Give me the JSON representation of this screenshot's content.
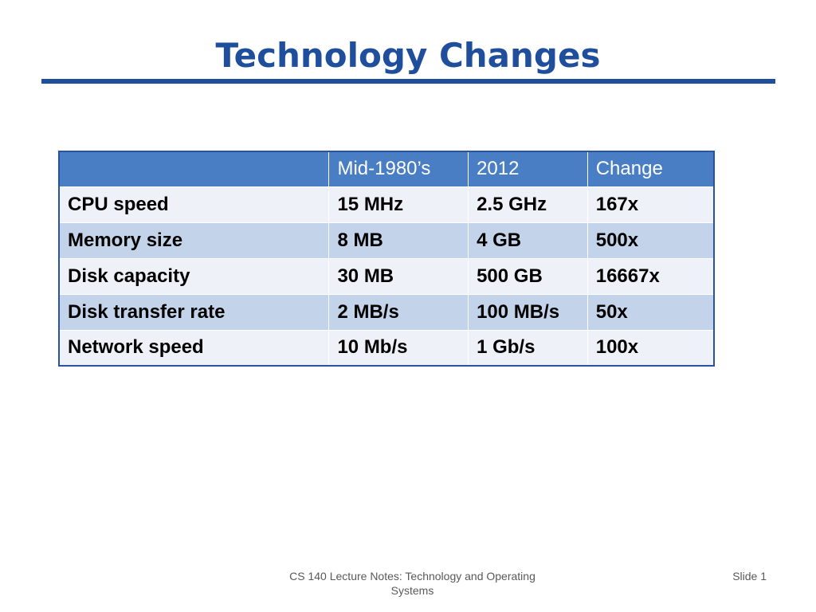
{
  "slide": {
    "title": "Technology Changes",
    "footer_text": "CS 140 Lecture Notes: Technology and Operating Systems",
    "slide_number": "Slide 1"
  },
  "table": {
    "headers": [
      "",
      "Mid-1980’s",
      "2012",
      "Change"
    ],
    "rows": [
      [
        "CPU speed",
        "15 MHz",
        "2.5 GHz",
        "167x"
      ],
      [
        "Memory size",
        "8 MB",
        "4 GB",
        "500x"
      ],
      [
        "Disk capacity",
        "30 MB",
        "500 GB",
        "16667x"
      ],
      [
        "Disk transfer rate",
        "2 MB/s",
        "100 MB/s",
        "50x"
      ],
      [
        "Network speed",
        "10 Mb/s",
        "1 Gb/s",
        "100x"
      ]
    ]
  },
  "colors": {
    "title": "#1f4e9c",
    "header_bg": "#4a7ec4",
    "row_light": "#eef2f8",
    "row_dark": "#c3d3ea"
  }
}
